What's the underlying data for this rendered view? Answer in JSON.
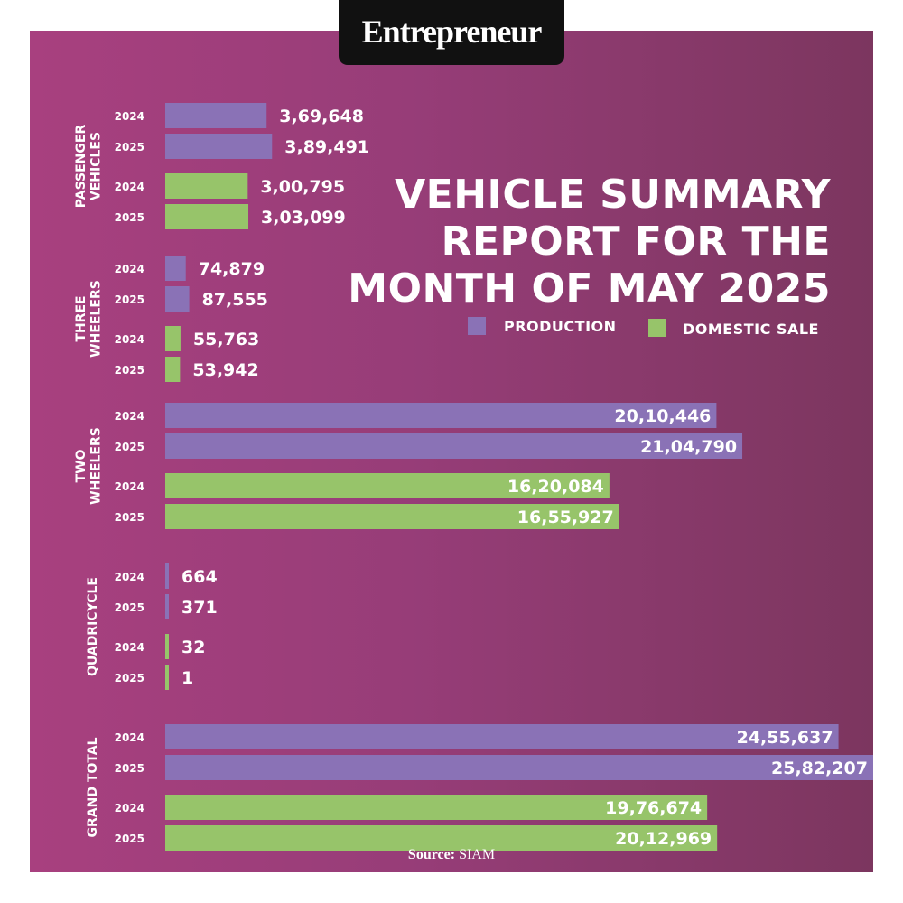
{
  "brand": "Entrepreneur",
  "title_lines": [
    "VEHICLE SUMMARY",
    "REPORT FOR THE",
    "MONTH OF MAY 2025"
  ],
  "legend": {
    "production": "PRODUCTION",
    "domestic": "DOMESTIC SALE"
  },
  "source": {
    "label": "Source:",
    "value": "SIAM"
  },
  "colors": {
    "production": "#8a72b6",
    "domestic": "#97c46a",
    "text": "#ffffff"
  },
  "chart_data": {
    "type": "bar",
    "orientation": "horizontal",
    "legend_placement": "top-right",
    "grid": false,
    "groups": [
      {
        "name": "PASSENGER VEHICLES",
        "label_lines": [
          "PASSENGER",
          "VEHICLES"
        ],
        "rows": [
          {
            "year": "2024",
            "series": "production",
            "value": 369648,
            "label": "3,69,648"
          },
          {
            "year": "2025",
            "series": "production",
            "value": 389491,
            "label": "3,89,491"
          },
          {
            "year": "2024",
            "series": "domestic",
            "value": 300795,
            "label": "3,00,795"
          },
          {
            "year": "2025",
            "series": "domestic",
            "value": 303099,
            "label": "3,03,099"
          }
        ]
      },
      {
        "name": "THREE WHEELERS",
        "label_lines": [
          "THREE",
          "WHEELERS"
        ],
        "rows": [
          {
            "year": "2024",
            "series": "production",
            "value": 74879,
            "label": "74,879"
          },
          {
            "year": "2025",
            "series": "production",
            "value": 87555,
            "label": "87,555"
          },
          {
            "year": "2024",
            "series": "domestic",
            "value": 55763,
            "label": "55,763"
          },
          {
            "year": "2025",
            "series": "domestic",
            "value": 53942,
            "label": "53,942"
          }
        ]
      },
      {
        "name": "TWO WHEELERS",
        "label_lines": [
          "TWO",
          "WHEELERS"
        ],
        "rows": [
          {
            "year": "2024",
            "series": "production",
            "value": 2010446,
            "label": "20,10,446"
          },
          {
            "year": "2025",
            "series": "production",
            "value": 2104790,
            "label": "21,04,790"
          },
          {
            "year": "2024",
            "series": "domestic",
            "value": 1620084,
            "label": "16,20,084"
          },
          {
            "year": "2025",
            "series": "domestic",
            "value": 1655927,
            "label": "16,55,927"
          }
        ]
      },
      {
        "name": "QUADRICYCLE",
        "label_lines": [
          "QUADRICYCLE"
        ],
        "rows": [
          {
            "year": "2024",
            "series": "production",
            "value": 664,
            "label": "664"
          },
          {
            "year": "2025",
            "series": "production",
            "value": 371,
            "label": "371"
          },
          {
            "year": "2024",
            "series": "domestic",
            "value": 32,
            "label": "32"
          },
          {
            "year": "2025",
            "series": "domestic",
            "value": 1,
            "label": "1"
          }
        ]
      },
      {
        "name": "GRAND TOTAL",
        "label_lines": [
          "GRAND TOTAL"
        ],
        "rows": [
          {
            "year": "2024",
            "series": "production",
            "value": 2455637,
            "label": "24,55,637"
          },
          {
            "year": "2025",
            "series": "production",
            "value": 2582207,
            "label": "25,82,207"
          },
          {
            "year": "2024",
            "series": "domestic",
            "value": 1976674,
            "label": "19,76,674"
          },
          {
            "year": "2025",
            "series": "domestic",
            "value": 2012969,
            "label": "20,12,969"
          }
        ]
      }
    ]
  }
}
